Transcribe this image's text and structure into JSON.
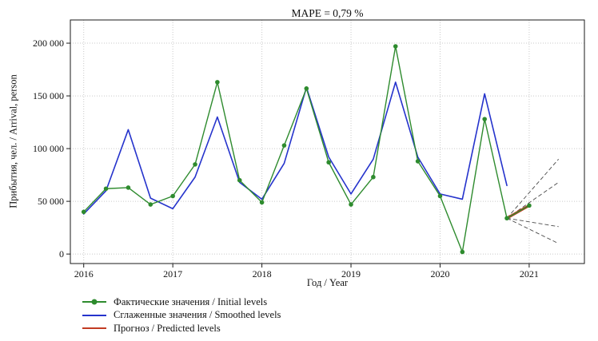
{
  "chart_data": {
    "type": "line",
    "title": "MAPE = 0,79 %",
    "xlabel": "Год / Year",
    "ylabel": "Прибытия, чел. / Arrival, person",
    "xlim": [
      2015.85,
      2021.62
    ],
    "ylim": [
      -9000,
      222000
    ],
    "xticks": [
      2016,
      2017,
      2018,
      2019,
      2020,
      2021
    ],
    "xtick_labels": [
      "2016",
      "2017",
      "2018",
      "2019",
      "2020",
      "2021"
    ],
    "yticks": [
      0,
      50000,
      100000,
      150000,
      200000
    ],
    "ytick_labels": [
      "0",
      "50 000",
      "100 000",
      "150 000",
      "200 000"
    ],
    "grid": true,
    "legend_position": "bottom-left",
    "frame_color": "#1a1a1a",
    "grid_color": "#c9c9c9",
    "series": [
      {
        "name": "Фактические значения / Initial levels",
        "color": "#2e8b2e",
        "marker": "circle",
        "line_width": 1.4,
        "x": [
          2016,
          2016.25,
          2016.5,
          2016.75,
          2017,
          2017.25,
          2017.5,
          2017.75,
          2018,
          2018.25,
          2018.5,
          2018.75,
          2019,
          2019.25,
          2019.5,
          2019.75,
          2020,
          2020.25,
          2020.5,
          2020.75,
          2021
        ],
        "values": [
          40000,
          62000,
          63000,
          47000,
          55000,
          85000,
          163000,
          70000,
          49000,
          103000,
          157000,
          87000,
          47000,
          73000,
          197000,
          88000,
          55000,
          2000,
          128000,
          34000,
          46000
        ]
      },
      {
        "name": "Сглаженные значения / Smoothed levels",
        "color": "#2533cc",
        "marker": "none",
        "line_width": 1.6,
        "x": [
          2016,
          2016.25,
          2016.5,
          2016.75,
          2017,
          2017.25,
          2017.5,
          2017.75,
          2018,
          2018.25,
          2018.5,
          2018.75,
          2019,
          2019.25,
          2019.5,
          2019.75,
          2020,
          2020.25,
          2020.5,
          2020.75
        ],
        "values": [
          38000,
          60000,
          118000,
          53000,
          43000,
          73000,
          130000,
          68000,
          52000,
          86000,
          158000,
          92000,
          57000,
          90000,
          163000,
          92000,
          57000,
          52000,
          152000,
          65000
        ]
      },
      {
        "name": "Прогноз / Predicted levels",
        "color": "#c23b22",
        "marker": "none",
        "line_width": 3.2,
        "x": [
          2020.75,
          2021
        ],
        "values": [
          34000,
          46000
        ]
      }
    ],
    "forecast_intervals": [
      {
        "x": [
          2020.75,
          2021.33
        ],
        "values": [
          34000,
          90000
        ]
      },
      {
        "x": [
          2020.75,
          2021.33
        ],
        "values": [
          34000,
          68000
        ]
      },
      {
        "x": [
          2020.75,
          2021.33
        ],
        "values": [
          34000,
          26000
        ]
      },
      {
        "x": [
          2020.75,
          2021.33
        ],
        "values": [
          34000,
          10000
        ]
      }
    ]
  }
}
